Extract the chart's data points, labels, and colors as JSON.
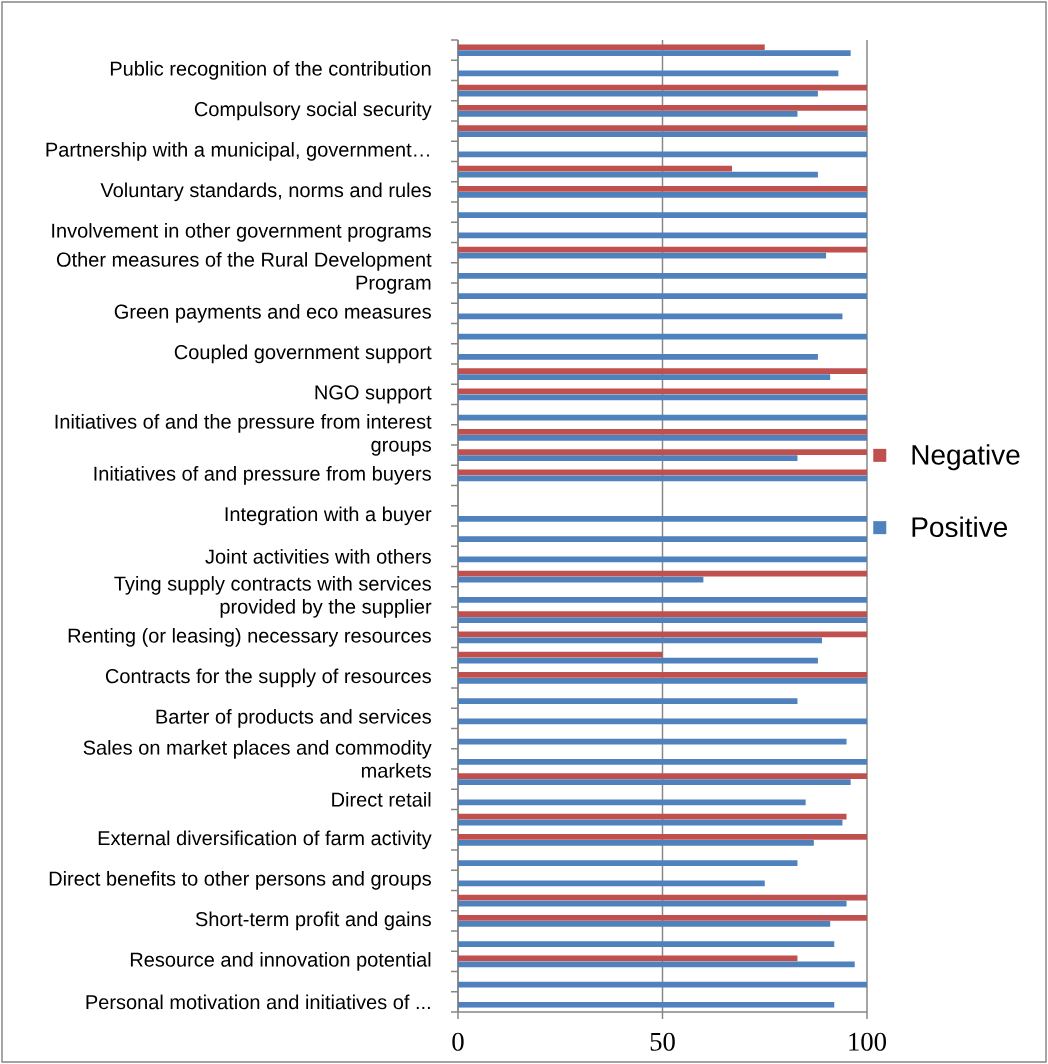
{
  "chart_data": {
    "type": "bar",
    "orientation": "horizontal",
    "categories": [
      null,
      "Public recognition of the contribution",
      null,
      "Compulsory social security",
      null,
      "Partnership with a municipal, government…",
      null,
      "Voluntary standards, norms and rules",
      null,
      "Involvement in other government programs",
      null,
      "Other measures of the Rural Development Program",
      null,
      "Green payments and eco measures",
      null,
      "Coupled government support",
      null,
      "NGO support",
      null,
      "Initiatives of and the pressure from interest groups",
      null,
      "Initiatives of and pressure from buyers",
      null,
      "Integration with a buyer",
      null,
      "Joint activities with others",
      null,
      "Tying supply contracts with services provided by the supplier",
      null,
      "Renting (or leasing) necessary resources",
      null,
      "Contracts for the supply of resources",
      null,
      "Barter of products and services",
      null,
      "Sales on market places and commodity markets",
      null,
      "Direct retail",
      null,
      "External diversification of farm activity",
      null,
      "Direct benefits to other persons and groups",
      null,
      "Short-term profit and gains",
      null,
      "Resource and innovation potential",
      null,
      "Personal motivation and initiatives of ..."
    ],
    "series": [
      {
        "name": "Negative",
        "color": "#c0504d",
        "values": [
          75,
          null,
          100,
          100,
          100,
          null,
          67,
          100,
          null,
          null,
          100,
          null,
          null,
          null,
          null,
          null,
          100,
          100,
          null,
          100,
          100,
          100,
          null,
          null,
          null,
          null,
          100,
          null,
          100,
          100,
          50,
          100,
          null,
          null,
          null,
          null,
          100,
          null,
          95,
          100,
          null,
          null,
          100,
          100,
          null,
          83,
          null,
          null
        ]
      },
      {
        "name": "Positive",
        "color": "#4f81bd",
        "values": [
          96,
          93,
          88,
          83,
          100,
          100,
          88,
          100,
          100,
          100,
          90,
          100,
          100,
          94,
          100,
          88,
          91,
          100,
          100,
          100,
          83,
          100,
          null,
          100,
          100,
          100,
          60,
          100,
          100,
          89,
          88,
          100,
          83,
          100,
          95,
          100,
          96,
          85,
          94,
          87,
          83,
          75,
          95,
          91,
          92,
          97,
          100,
          92
        ]
      }
    ],
    "xlim": [
      0,
      100
    ],
    "xticks": [
      0,
      50,
      100
    ],
    "grid": "x",
    "legend": "right"
  }
}
